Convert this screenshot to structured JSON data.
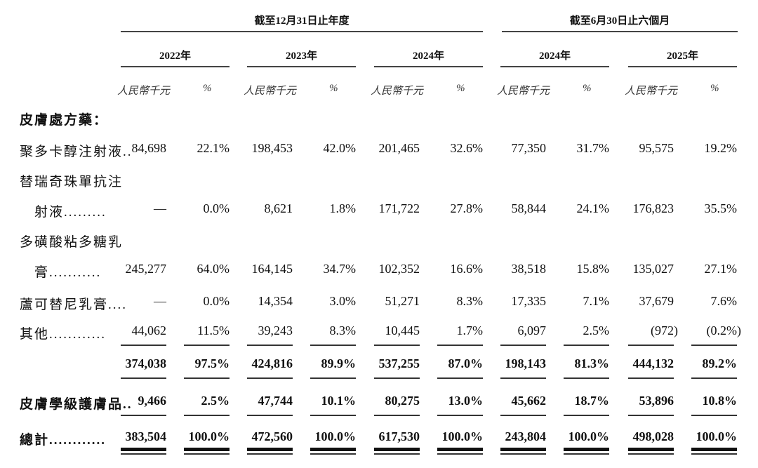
{
  "header": {
    "group_full_year": "截至12月31日止年度",
    "group_six_months": "截至6月30日止六個月",
    "years": [
      "2022年",
      "2023年",
      "2024年",
      "2024年",
      "2025年"
    ],
    "unit_amount": "人民幣千元",
    "unit_pct": "%"
  },
  "section_title": "皮膚處方藥：",
  "rows": [
    {
      "label": [
        "聚多卡醇注射液.."
      ],
      "bold": false,
      "underline": "none",
      "values": [
        "84,698",
        "22.1%",
        "198,453",
        "42.0%",
        "201,465",
        "32.6%",
        "77,350",
        "31.7%",
        "95,575",
        "19.2%"
      ]
    },
    {
      "label": [
        "替瑞奇珠單抗注",
        "　射液........."
      ],
      "bold": false,
      "underline": "none",
      "values": [
        "—",
        "0.0%",
        "8,621",
        "1.8%",
        "171,722",
        "27.8%",
        "58,844",
        "24.1%",
        "176,823",
        "35.5%"
      ]
    },
    {
      "label": [
        "多磺酸粘多糖乳",
        "　膏..........."
      ],
      "bold": false,
      "underline": "none",
      "values": [
        "245,277",
        "64.0%",
        "164,145",
        "34.7%",
        "102,352",
        "16.6%",
        "38,518",
        "15.8%",
        "135,027",
        "27.1%"
      ]
    },
    {
      "label": [
        "蘆可替尼乳膏...."
      ],
      "bold": false,
      "underline": "none",
      "values": [
        "—",
        "0.0%",
        "14,354",
        "3.0%",
        "51,271",
        "8.3%",
        "17,335",
        "7.1%",
        "37,679",
        "7.6%"
      ]
    },
    {
      "label": [
        "其他............"
      ],
      "bold": false,
      "underline": "single",
      "values": [
        "44,062",
        "11.5%",
        "39,243",
        "8.3%",
        "10,445",
        "1.7%",
        "6,097",
        "2.5%",
        "(972)",
        "(0.2%)"
      ]
    },
    {
      "label": [
        ""
      ],
      "bold": true,
      "underline": "single",
      "values": [
        "374,038",
        "97.5%",
        "424,816",
        "89.9%",
        "537,255",
        "87.0%",
        "198,143",
        "81.3%",
        "444,132",
        "89.2%"
      ]
    },
    {
      "label": [
        "皮膚學級護膚品.."
      ],
      "bold": true,
      "underline": "single",
      "values": [
        "9,466",
        "2.5%",
        "47,744",
        "10.1%",
        "80,275",
        "13.0%",
        "45,662",
        "18.7%",
        "53,896",
        "10.8%"
      ]
    },
    {
      "label": [
        "總計............"
      ],
      "bold": true,
      "underline": "double",
      "values": [
        "383,504",
        "100.0%",
        "472,560",
        "100.0%",
        "617,530",
        "100.0%",
        "243,804",
        "100.0%",
        "498,028",
        "100.0%"
      ]
    }
  ]
}
